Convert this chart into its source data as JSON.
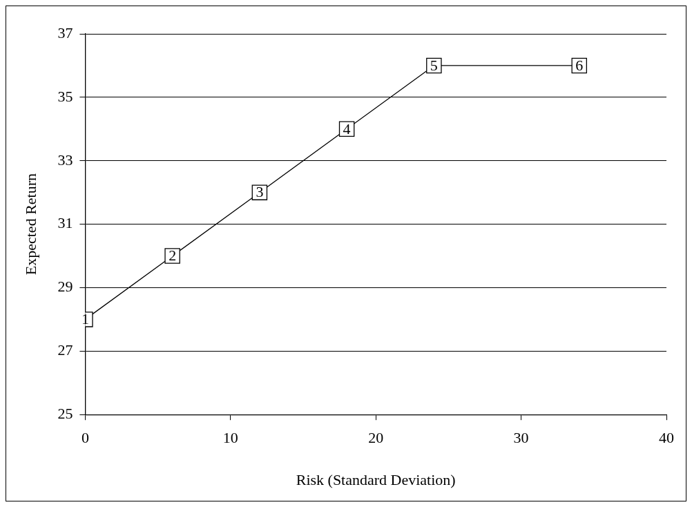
{
  "chart_data": {
    "type": "line",
    "xlabel": "Risk (Standard Deviation)",
    "ylabel": "Expected Return",
    "x": [
      0,
      6,
      12,
      18,
      24,
      34
    ],
    "series": [
      {
        "color": "#000000",
        "values": [
          28,
          30,
          32,
          34,
          36,
          36
        ]
      }
    ],
    "xlim": [
      0,
      40
    ],
    "xticks": [
      0,
      10,
      20,
      30,
      40
    ],
    "ylim": [
      25,
      37
    ],
    "yticks": [
      25,
      27,
      29,
      31,
      33,
      35,
      37
    ],
    "grid": "y",
    "legend": false,
    "marker": "square",
    "line_style": "solid",
    "annotations": [
      {
        "text": "1",
        "x": 0,
        "y": 28
      },
      {
        "text": "2",
        "x": 6,
        "y": 30
      },
      {
        "text": "3",
        "x": 12,
        "y": 32
      },
      {
        "text": "4",
        "x": 18,
        "y": 34
      },
      {
        "text": "5",
        "x": 24,
        "y": 36
      },
      {
        "text": "6",
        "x": 34,
        "y": 36
      }
    ]
  }
}
